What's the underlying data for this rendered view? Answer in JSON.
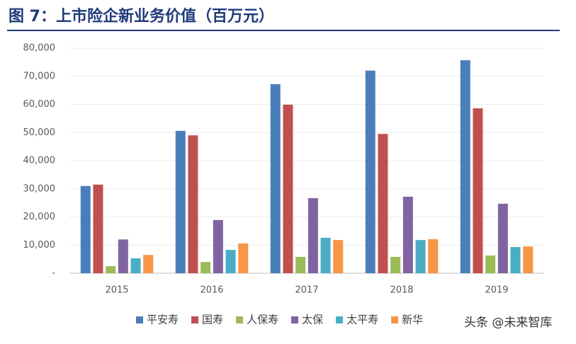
{
  "chart_data": {
    "type": "bar",
    "title": "图 7：上市险企新业务价值（百万元）",
    "categories": [
      "2015",
      "2016",
      "2017",
      "2018",
      "2019"
    ],
    "series": [
      {
        "name": "平安寿",
        "color": "#4a7ebb",
        "values": [
          31000,
          50600,
          67200,
          72000,
          75700
        ]
      },
      {
        "name": "国寿",
        "color": "#c0504d",
        "values": [
          31500,
          49000,
          59900,
          49500,
          58600
        ]
      },
      {
        "name": "人保寿",
        "color": "#9bbb59",
        "values": [
          2500,
          4000,
          5800,
          5800,
          6300
        ]
      },
      {
        "name": "太保",
        "color": "#8064a2",
        "values": [
          12000,
          18900,
          26700,
          27200,
          24700
        ]
      },
      {
        "name": "太平寿",
        "color": "#4bacc6",
        "values": [
          5300,
          8300,
          12600,
          11800,
          9300
        ]
      },
      {
        "name": "新华",
        "color": "#f79646",
        "values": [
          6500,
          10600,
          11800,
          12100,
          9500
        ]
      }
    ],
    "ylim": [
      0,
      80000
    ],
    "yticks": [
      {
        "value": 0,
        "label": "-"
      },
      {
        "value": 10000,
        "label": "10,000"
      },
      {
        "value": 20000,
        "label": "20,000"
      },
      {
        "value": 30000,
        "label": "30,000"
      },
      {
        "value": 40000,
        "label": "40,000"
      },
      {
        "value": 50000,
        "label": "50,000"
      },
      {
        "value": 60000,
        "label": "60,000"
      },
      {
        "value": 70000,
        "label": "70,000"
      },
      {
        "value": 80000,
        "label": "80,000"
      }
    ],
    "grid": true,
    "legend": "bottom"
  },
  "watermark": "头条 @未来智库"
}
